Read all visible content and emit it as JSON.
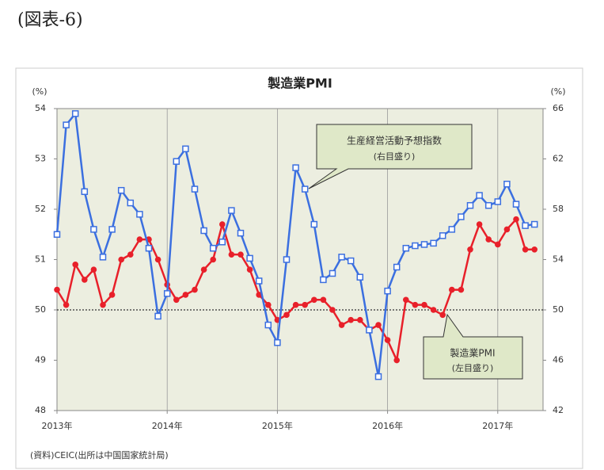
{
  "figure_label": "(図表-6)",
  "chart_data": {
    "type": "line",
    "title": "製造業PMI",
    "ylabel": "(%)",
    "y2label": "(%)",
    "categories": [
      "2013年",
      null,
      null,
      null,
      null,
      null,
      null,
      null,
      null,
      null,
      null,
      null,
      "2014年",
      null,
      null,
      null,
      null,
      null,
      null,
      null,
      null,
      null,
      null,
      null,
      "2015年",
      null,
      null,
      null,
      null,
      null,
      null,
      null,
      null,
      null,
      null,
      null,
      "2016年",
      null,
      null,
      null,
      null,
      null,
      null,
      null,
      null,
      null,
      null,
      null,
      "2017年",
      null,
      null,
      null,
      null
    ],
    "ylim": [
      48,
      54
    ],
    "yticks": [
      48,
      49,
      50,
      51,
      52,
      53,
      54
    ],
    "y2lim": [
      42,
      66
    ],
    "y2ticks": [
      42,
      46,
      50,
      54,
      58,
      62,
      66
    ],
    "reference_line": 50,
    "series": [
      {
        "name": "製造業PMI",
        "note": "(左目盛り)",
        "color": "#e8202a",
        "marker": "circle",
        "values": [
          50.4,
          50.1,
          50.9,
          50.6,
          50.8,
          50.1,
          50.3,
          51.0,
          51.1,
          51.4,
          51.4,
          51.0,
          50.5,
          50.2,
          50.3,
          50.4,
          50.8,
          51.0,
          51.7,
          51.1,
          51.1,
          50.8,
          50.3,
          50.1,
          49.8,
          49.9,
          50.1,
          50.1,
          50.2,
          50.2,
          50.0,
          49.7,
          49.8,
          49.8,
          49.6,
          49.7,
          49.4,
          49.0,
          50.2,
          50.1,
          50.1,
          50.0,
          49.9,
          50.4,
          50.4,
          51.2,
          51.7,
          51.4,
          51.3,
          51.6,
          51.8,
          51.2,
          51.2
        ]
      },
      {
        "name": "生産経営活動予想指数",
        "note": "(右目盛り)",
        "color": "#3b6fe0",
        "marker": "square",
        "axis": "y2",
        "values": [
          56.0,
          64.7,
          65.6,
          59.4,
          56.4,
          54.2,
          56.4,
          59.5,
          58.5,
          57.6,
          54.9,
          49.5,
          51.3,
          61.8,
          62.8,
          59.6,
          56.3,
          54.9,
          55.4,
          57.9,
          56.1,
          54.1,
          52.3,
          48.8,
          47.4,
          54.0,
          61.3,
          59.6,
          56.8,
          52.4,
          52.9,
          54.2,
          53.9,
          52.6,
          48.4,
          44.7,
          51.5,
          53.4,
          54.9,
          55.1,
          55.2,
          55.3,
          55.9,
          56.4,
          57.4,
          58.3,
          59.1,
          58.3,
          58.6,
          60.0,
          58.4,
          56.7,
          56.8
        ]
      }
    ]
  },
  "source": "(資料)CEIC(出所は中国国家統計局)"
}
